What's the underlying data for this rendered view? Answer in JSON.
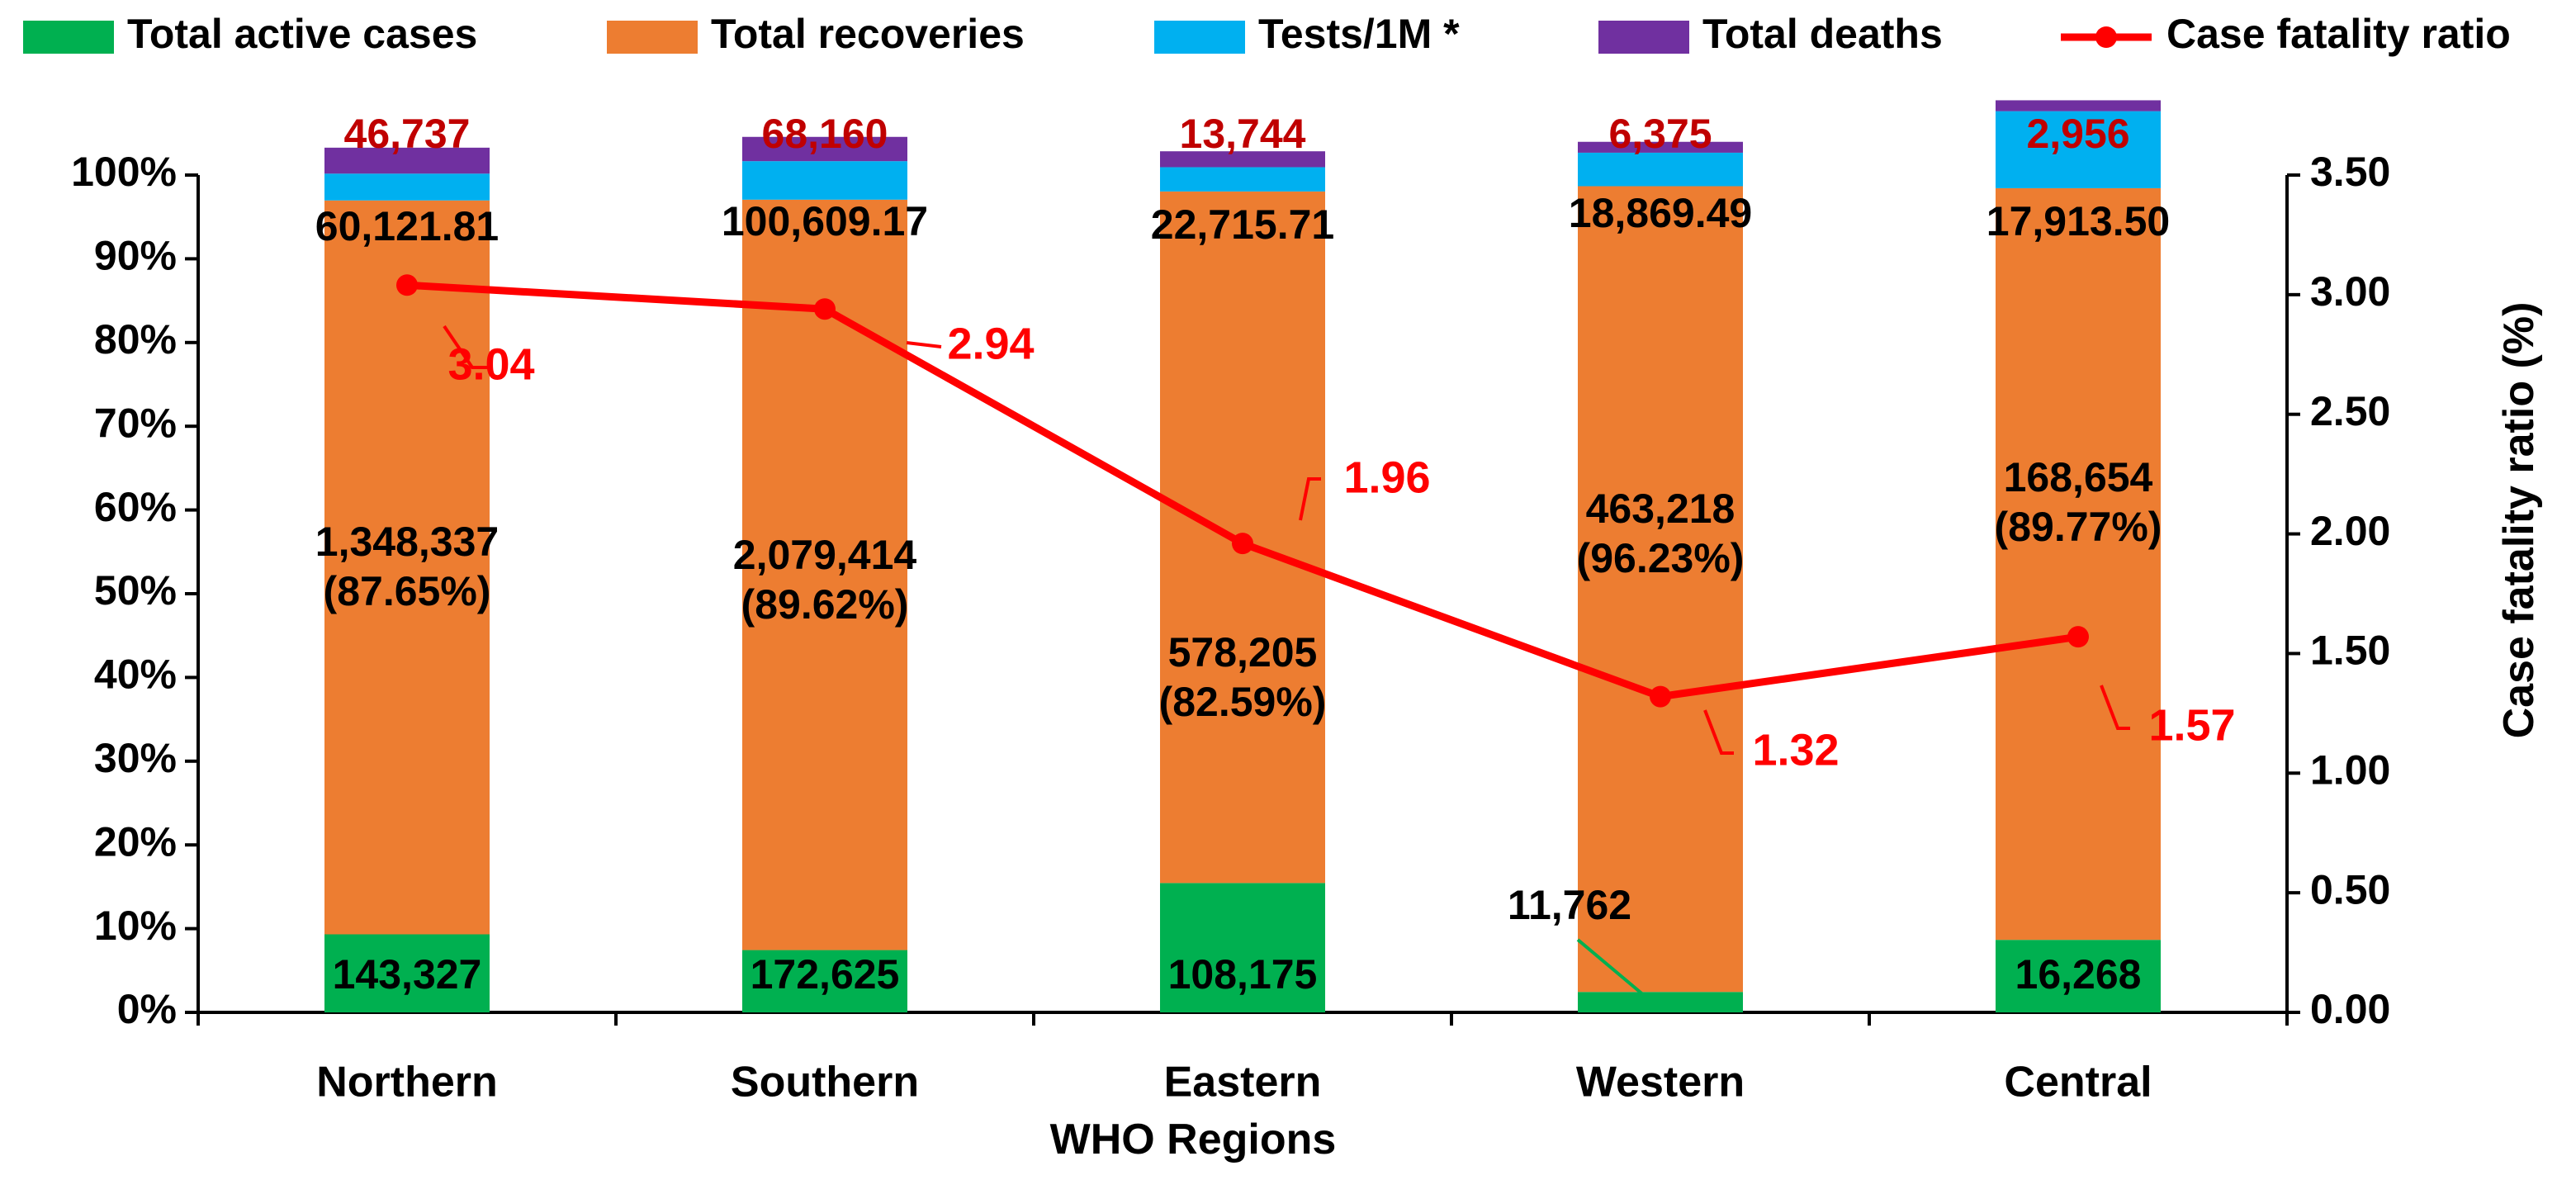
{
  "chart_data": {
    "type": "bar",
    "stacked": "percent",
    "xlabel": "WHO Regions",
    "ylabel": "",
    "y2label": "Case fatality ratio (%)",
    "categories": [
      "Northern",
      "Southern",
      "Eastern",
      "Western",
      "Central"
    ],
    "ylim": [
      0,
      100
    ],
    "yticks": [
      "0%",
      "10%",
      "20%",
      "30%",
      "40%",
      "50%",
      "60%",
      "70%",
      "80%",
      "90%",
      "100%"
    ],
    "y2lim": [
      0,
      3.5
    ],
    "y2ticks": [
      "0.00",
      "0.50",
      "1.00",
      "1.50",
      "2.00",
      "2.50",
      "3.00",
      "3.50"
    ],
    "legend": {
      "position": "top",
      "entries": [
        "Total active cases",
        "Total recoveries",
        "Tests/1M *",
        "Total deaths",
        "Case fatality ratio"
      ]
    },
    "series": [
      {
        "name": "Total active cases",
        "color": "#00b050",
        "percent": [
          9.32,
          7.44,
          15.45,
          2.44,
          8.66
        ],
        "labels": [
          "143,327",
          "172,625",
          "108,175",
          "11,762",
          "16,268"
        ]
      },
      {
        "name": "Total recoveries",
        "color": "#ed7d31",
        "percent": [
          87.65,
          89.62,
          82.59,
          96.23,
          89.77
        ],
        "labels": [
          "1,348,337",
          "2,079,414",
          "578,205",
          "463,218",
          "168,654"
        ],
        "sublabels": [
          "(87.65%)",
          "(89.62%)",
          "(82.59%)",
          "(96.23%)",
          "(89.77%)"
        ]
      },
      {
        "name": "Tests/1M *",
        "color": "#00b0f0",
        "percent": [
          3.2,
          4.6,
          2.9,
          4.0,
          9.2
        ],
        "labels": [
          "60,121.81",
          "100,609.17",
          "22,715.71",
          "18,869.49",
          "17,913.50"
        ]
      },
      {
        "name": "Total deaths",
        "color": "#7030a0",
        "percent": [
          3.1,
          2.9,
          1.9,
          1.3,
          1.3
        ],
        "labels": [
          "46,737",
          "68,160",
          "13,744",
          "6,375",
          "2,956"
        ]
      },
      {
        "name": "Case fatality ratio",
        "color": "#ff0000",
        "axis": "secondary",
        "type": "line",
        "values": [
          3.04,
          2.94,
          1.96,
          1.32,
          1.57
        ],
        "labels": [
          "3.04",
          "2.94",
          "1.96",
          "1.32",
          "1.57"
        ]
      }
    ]
  }
}
